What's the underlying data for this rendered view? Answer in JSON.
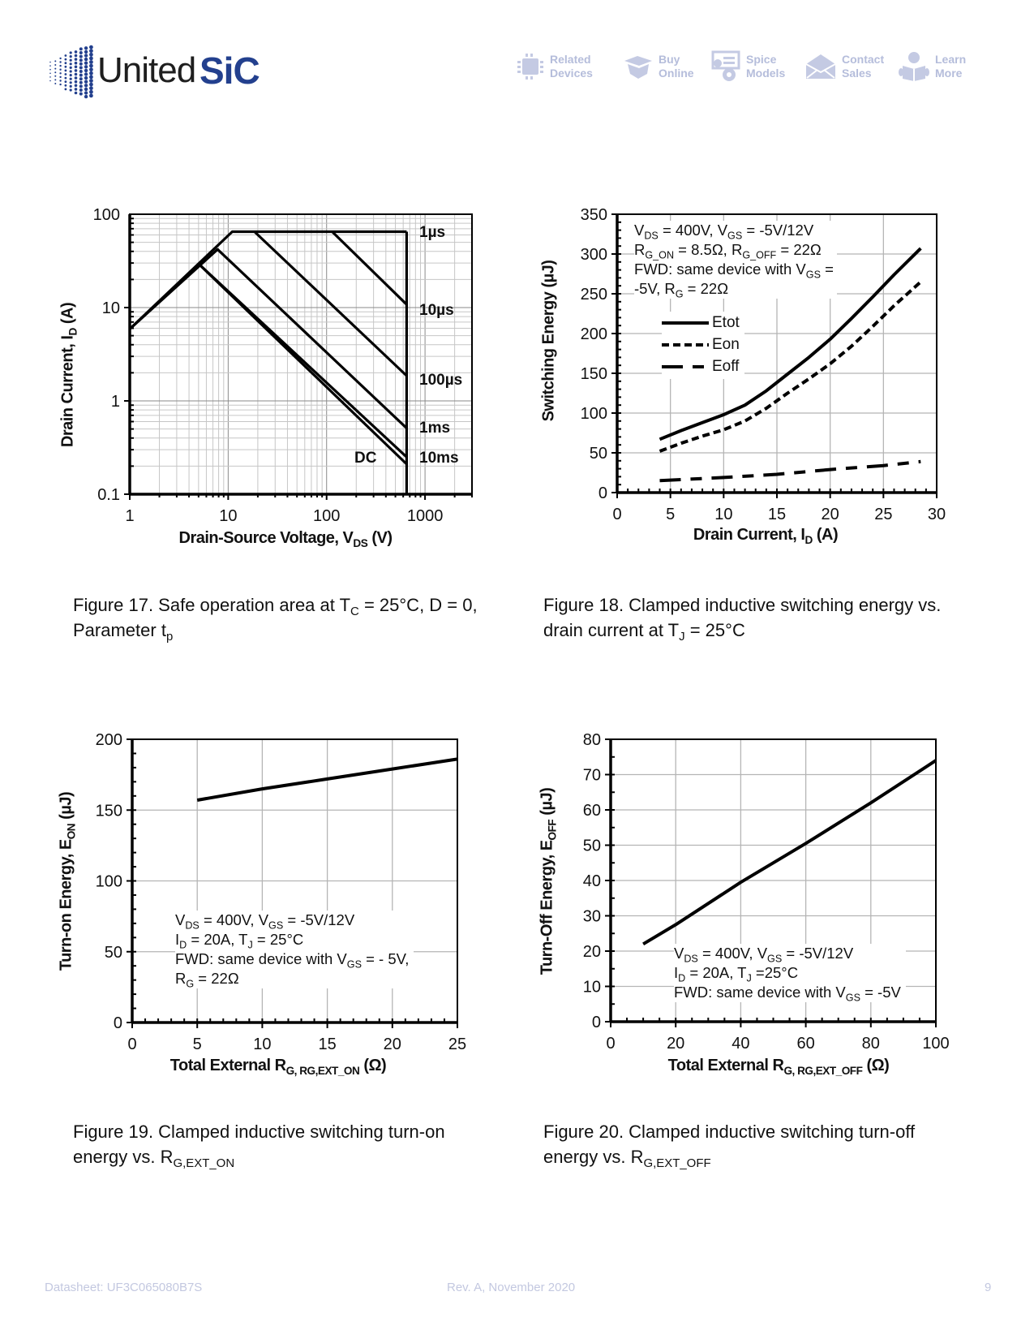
{
  "header": {
    "logo": {
      "part1": "United",
      "part2": "SiC"
    },
    "nav": [
      {
        "line1": "Related",
        "line2": "Devices",
        "icon": "chip-icon"
      },
      {
        "line1": "Buy",
        "line2": "Online",
        "icon": "box-icon"
      },
      {
        "line1": "Spice",
        "line2": "Models",
        "icon": "gears-icon"
      },
      {
        "line1": "Contact",
        "line2": "Sales",
        "icon": "envelope-icon"
      },
      {
        "line1": "Learn",
        "line2": "More",
        "icon": "reader-icon"
      }
    ]
  },
  "chart_data": [
    {
      "type": "line",
      "scale": "log-log",
      "xlim": [
        1,
        3000
      ],
      "ylim": [
        0.1,
        100
      ],
      "xticks": [
        1,
        10,
        100,
        1000
      ],
      "yticks": [
        0.1,
        1,
        10,
        100
      ],
      "xlabel": [
        "Drain-Source Voltage, V",
        {
          "sub": "DS"
        },
        " (V)"
      ],
      "ylabel": [
        "Drain Current, I",
        {
          "sub": "D"
        },
        " (A)"
      ],
      "grid": true,
      "series": [
        {
          "name": "1µs",
          "points": [
            [
              1,
              5.9
            ],
            [
              11,
              65
            ],
            [
              650,
              65
            ]
          ]
        },
        {
          "name": "10µs",
          "points": [
            [
              114,
              65
            ],
            [
              650,
              10.8
            ]
          ]
        },
        {
          "name": "100µs",
          "points": [
            [
              18.5,
              65
            ],
            [
              650,
              1.86
            ]
          ]
        },
        {
          "name": "1ms",
          "points": [
            [
              1,
              5.9
            ],
            [
              7.8,
              42
            ],
            [
              650,
              0.51
            ]
          ]
        },
        {
          "name": "10ms",
          "points": [
            [
              5.0,
              29.5
            ],
            [
              650,
              0.25
            ]
          ]
        },
        {
          "name": "DC",
          "points": [
            [
              5.0,
              29.5
            ],
            [
              650,
              0.21
            ]
          ]
        },
        {
          "name": "VDS limit",
          "points": [
            [
              650,
              65
            ],
            [
              650,
              0.1
            ]
          ]
        }
      ],
      "caption": [
        [
          "Figure 17. Safe operation area at T",
          {
            "sub": "C"
          },
          " = 25°C, D = 0,"
        ],
        [
          "Parameter t",
          {
            "sub": "p"
          }
        ]
      ]
    },
    {
      "type": "line",
      "xlim": [
        0,
        30
      ],
      "ylim": [
        0,
        350
      ],
      "xticks": [
        0,
        5,
        10,
        15,
        20,
        25,
        30
      ],
      "yticks": [
        0,
        50,
        100,
        150,
        200,
        250,
        300,
        350
      ],
      "xlabel": [
        "Drain Current, I",
        {
          "sub": "D"
        },
        " (A)"
      ],
      "ylabel": [
        "Switching Energy (µJ)"
      ],
      "grid": true,
      "legend_position": "upper-left",
      "annotation": [
        [
          "V",
          {
            "sub": "DS"
          },
          " = 400V, V",
          {
            "sub": "GS"
          },
          " = -5V/12V"
        ],
        [
          "R",
          {
            "sub": "G_ON"
          },
          " = 8.5Ω, R",
          {
            "sub": "G_OFF"
          },
          " = 22Ω"
        ],
        [
          "FWD: same device with V",
          {
            "sub": "GS"
          },
          " ="
        ],
        [
          "-5V, R",
          {
            "sub": "G"
          },
          " = 22Ω"
        ]
      ],
      "series": [
        {
          "name": "Etot",
          "style": "solid",
          "points": [
            [
              4,
              67
            ],
            [
              6,
              78
            ],
            [
              8,
              88
            ],
            [
              10,
              98
            ],
            [
              12,
              110
            ],
            [
              14,
              128
            ],
            [
              16,
              149
            ],
            [
              18,
              170
            ],
            [
              20,
              193
            ],
            [
              22,
              219
            ],
            [
              24,
              246
            ],
            [
              26,
              274
            ],
            [
              28.5,
              307
            ]
          ]
        },
        {
          "name": "Eon",
          "style": "dashed",
          "points": [
            [
              4,
              52
            ],
            [
              6,
              62
            ],
            [
              8,
              71
            ],
            [
              10,
              79
            ],
            [
              12,
              90
            ],
            [
              14,
              106
            ],
            [
              16,
              125
            ],
            [
              18,
              143
            ],
            [
              20,
              162
            ],
            [
              22,
              184
            ],
            [
              24,
              209
            ],
            [
              26,
              235
            ],
            [
              28.5,
              265
            ]
          ]
        },
        {
          "name": "Eoff",
          "style": "long-dash",
          "points": [
            [
              4,
              15
            ],
            [
              10,
              19
            ],
            [
              15,
              23
            ],
            [
              20,
              29
            ],
            [
              25,
              34
            ],
            [
              28.5,
              39
            ]
          ]
        }
      ],
      "caption": [
        [
          "Figure 18. Clamped inductive  switching energy vs."
        ],
        [
          "drain current at T",
          {
            "sub": "J"
          },
          " = 25°C"
        ]
      ]
    },
    {
      "type": "line",
      "xlim": [
        0,
        25
      ],
      "ylim": [
        0,
        200
      ],
      "xticks": [
        0,
        5,
        10,
        15,
        20,
        25
      ],
      "yticks": [
        0,
        50,
        100,
        150,
        200
      ],
      "xlabel": [
        "Total External R",
        {
          "sub": "G, RG,EXT_ON"
        },
        " (Ω)"
      ],
      "ylabel": [
        "Turn-on Energy, E",
        {
          "sub": "ON"
        },
        " (µJ)"
      ],
      "grid": true,
      "annotation": [
        [
          "V",
          {
            "sub": "DS"
          },
          " = 400V, V",
          {
            "sub": "GS"
          },
          " = -5V/12V"
        ],
        [
          "I",
          {
            "sub": "D"
          },
          " = 20A, T",
          {
            "sub": "J"
          },
          " = 25°C"
        ],
        [
          "FWD: same device with V",
          {
            "sub": "GS"
          },
          " = - 5V,"
        ],
        [
          "R",
          {
            "sub": "G"
          },
          " = 22Ω"
        ]
      ],
      "series": [
        {
          "name": "Eon",
          "points": [
            [
              5,
              157
            ],
            [
              10,
              165
            ],
            [
              15,
              172
            ],
            [
              20,
              179
            ],
            [
              25,
              186
            ]
          ]
        }
      ],
      "caption": [
        [
          "Figure 19. Clamped inductive  switching turn-on"
        ],
        [
          "energy vs. R",
          {
            "sub": "G,EXT_ON"
          }
        ]
      ]
    },
    {
      "type": "line",
      "xlim": [
        0,
        100
      ],
      "ylim": [
        0,
        80
      ],
      "xticks": [
        0,
        20,
        40,
        60,
        80,
        100
      ],
      "yticks": [
        0,
        10,
        20,
        30,
        40,
        50,
        60,
        70,
        80
      ],
      "xlabel": [
        "Total External R",
        {
          "sub": "G, RG,EXT_OFF"
        },
        " (Ω)"
      ],
      "ylabel": [
        "Turn-Off Energy, E",
        {
          "sub": "OFF"
        },
        " (µJ)"
      ],
      "grid": true,
      "annotation": [
        [
          "V",
          {
            "sub": "DS"
          },
          " = 400V, V",
          {
            "sub": "GS"
          },
          " = -5V/12V"
        ],
        [
          "I",
          {
            "sub": "D"
          },
          " = 20A, T",
          {
            "sub": "J"
          },
          " =25°C"
        ],
        [
          "FWD: same device with V",
          {
            "sub": "GS"
          },
          " = -5V"
        ]
      ],
      "series": [
        {
          "name": "Eoff",
          "points": [
            [
              10,
              22
            ],
            [
              20,
              27.5
            ],
            [
              40,
              39.5
            ],
            [
              60,
              50.5
            ],
            [
              80,
              62
            ],
            [
              100,
              74
            ]
          ]
        }
      ],
      "caption": [
        [
          "Figure 20. Clamped inductive  switching turn-off"
        ],
        [
          "energy vs. R",
          {
            "sub": "G,EXT_OFF"
          }
        ]
      ]
    }
  ],
  "footer": {
    "datasheet": "Datasheet: UF3C065080B7S",
    "revision": "Rev. A, November 2020",
    "page": "9"
  },
  "colors": {
    "brand": "#23408e",
    "nav": "#b5bddb",
    "footer": "#c3c8e0",
    "grid": "#bdbdbd"
  }
}
